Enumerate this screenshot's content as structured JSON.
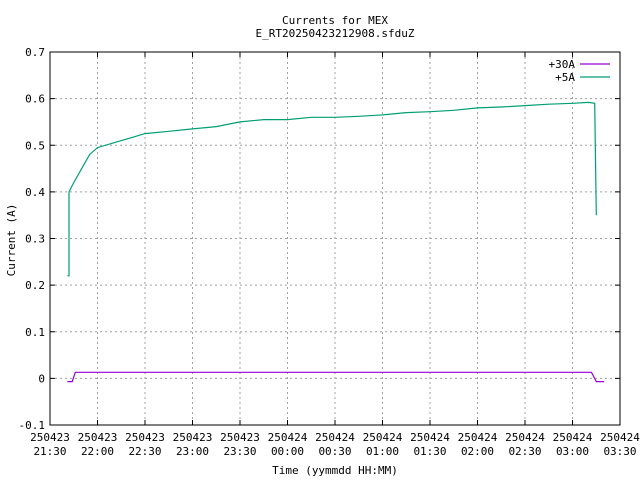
{
  "chart_data": {
    "type": "line",
    "title": "Currents for MEX",
    "subtitle": "E_RT20250423212908.sfduZ",
    "xlabel": "Time (yymmdd HH:MM)",
    "ylabel": "Current (A)",
    "ylim": [
      -0.1,
      0.7
    ],
    "yticks": [
      "-0.1",
      "0",
      "0.1",
      "0.2",
      "0.3",
      "0.4",
      "0.5",
      "0.6",
      "0.7"
    ],
    "xticks": [
      {
        "date": "250423",
        "time": "21:30"
      },
      {
        "date": "250423",
        "time": "22:00"
      },
      {
        "date": "250423",
        "time": "22:30"
      },
      {
        "date": "250423",
        "time": "23:00"
      },
      {
        "date": "250423",
        "time": "23:30"
      },
      {
        "date": "250424",
        "time": "00:00"
      },
      {
        "date": "250424",
        "time": "00:30"
      },
      {
        "date": "250424",
        "time": "01:00"
      },
      {
        "date": "250424",
        "time": "01:30"
      },
      {
        "date": "250424",
        "time": "02:00"
      },
      {
        "date": "250424",
        "time": "02:30"
      },
      {
        "date": "250424",
        "time": "03:00"
      },
      {
        "date": "250424",
        "time": "03:30"
      }
    ],
    "grid": true,
    "legend_position": "top-right",
    "series": [
      {
        "name": "+30A",
        "color": "#9400d3",
        "x": [
          "250423 21:41",
          "250423 21:44",
          "250423 21:46",
          "250423 22:00",
          "250423 22:30",
          "250423 23:00",
          "250423 23:30",
          "250424 00:00",
          "250424 00:30",
          "250424 01:00",
          "250424 01:30",
          "250424 02:00",
          "250424 02:30",
          "250424 03:00",
          "250424 03:12",
          "250424 03:15",
          "250424 03:20"
        ],
        "y": [
          -0.007,
          -0.007,
          0.013,
          0.013,
          0.013,
          0.013,
          0.013,
          0.013,
          0.013,
          0.013,
          0.013,
          0.013,
          0.013,
          0.013,
          0.013,
          -0.007,
          -0.007
        ]
      },
      {
        "name": "+5A",
        "color": "#009e73",
        "x": [
          "250423 21:41",
          "250423 21:42",
          "250423 21:42",
          "250423 21:45",
          "250423 21:50",
          "250423 21:55",
          "250423 22:00",
          "250423 22:10",
          "250423 22:20",
          "250423 22:30",
          "250423 22:45",
          "250423 23:00",
          "250423 23:15",
          "250423 23:30",
          "250423 23:45",
          "250424 00:00",
          "250424 00:15",
          "250424 00:30",
          "250424 00:45",
          "250424 01:00",
          "250424 01:15",
          "250424 01:30",
          "250424 01:45",
          "250424 02:00",
          "250424 02:15",
          "250424 02:30",
          "250424 02:45",
          "250424 03:00",
          "250424 03:10",
          "250424 03:14",
          "250424 03:15"
        ],
        "y": [
          0.22,
          0.22,
          0.4,
          0.42,
          0.45,
          0.48,
          0.495,
          0.505,
          0.515,
          0.525,
          0.53,
          0.535,
          0.54,
          0.55,
          0.555,
          0.555,
          0.56,
          0.56,
          0.562,
          0.565,
          0.57,
          0.572,
          0.575,
          0.58,
          0.582,
          0.585,
          0.588,
          0.59,
          0.592,
          0.59,
          0.35
        ]
      }
    ]
  }
}
